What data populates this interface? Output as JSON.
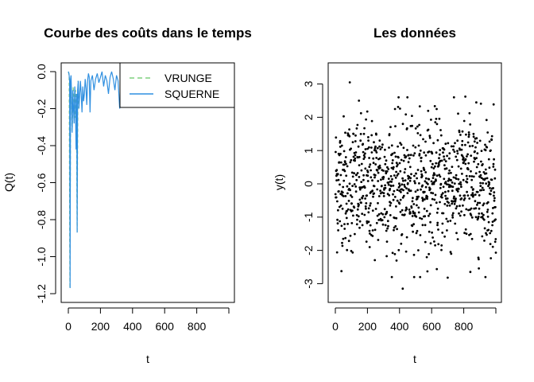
{
  "chart_data": [
    {
      "type": "line",
      "title": "Courbe des coûts dans le temps",
      "xlabel": "t",
      "ylabel": "Q(t)",
      "xlim": [
        0,
        1000
      ],
      "ylim": [
        -1.2,
        0.0
      ],
      "xticks": [
        0,
        200,
        400,
        600,
        800
      ],
      "xtick_labels": [
        "0",
        "200",
        "400",
        "600",
        "800"
      ],
      "yticks": [
        -1.2,
        -1.0,
        -0.8,
        -0.6,
        -0.4,
        -0.2,
        0.0
      ],
      "ytick_labels": [
        "-1.2",
        "-1.0",
        "-0.8",
        "-0.6",
        "-0.4",
        "-0.2",
        "0.0"
      ],
      "grid": false,
      "legend": {
        "placement": "top-right",
        "entries": [
          {
            "name": "VRUNGE",
            "color": "#7fd07f",
            "dash": true
          },
          {
            "name": "SQUERNE",
            "color": "#2f8fe0",
            "dash": false
          }
        ]
      },
      "series": [
        {
          "name": "VRUNGE",
          "color": "#7fd07f",
          "x": [
            0,
            5,
            10,
            15,
            20,
            25,
            30,
            35,
            40,
            45,
            50,
            55,
            60
          ],
          "y": [
            0.0,
            -0.02,
            -1.17,
            -0.05,
            -0.12,
            -0.3,
            -0.08,
            -0.15,
            -0.25,
            -0.1,
            -0.2,
            -0.87,
            -0.05
          ]
        },
        {
          "name": "SQUERNE",
          "color": "#2f8fe0",
          "x": [
            0,
            4,
            8,
            11,
            14,
            17,
            20,
            24,
            28,
            32,
            36,
            40,
            44,
            48,
            52,
            55,
            58,
            62,
            66,
            70,
            75,
            80,
            85,
            90,
            95,
            100,
            105,
            110,
            115,
            120,
            125,
            130,
            135,
            140,
            150,
            160,
            170,
            180,
            190,
            200,
            210,
            220,
            230,
            240,
            250,
            260,
            270,
            280,
            290,
            300,
            310,
            320,
            330
          ],
          "y": [
            0.0,
            -0.01,
            -0.05,
            -1.17,
            -0.04,
            -0.02,
            -0.12,
            -0.33,
            -0.1,
            -0.2,
            -0.28,
            -0.08,
            -0.15,
            -0.42,
            -0.12,
            -0.87,
            -0.1,
            -0.05,
            -0.2,
            -0.14,
            -0.05,
            -0.12,
            -0.22,
            -0.08,
            -0.16,
            -0.12,
            -0.04,
            -0.09,
            -0.18,
            -0.05,
            -0.01,
            -0.03,
            -0.22,
            -0.05,
            -0.02,
            -0.1,
            -0.04,
            -0.01,
            -0.06,
            -0.03,
            0.0,
            -0.08,
            -0.02,
            -0.05,
            -0.12,
            -0.03,
            0.0,
            -0.04,
            -0.1,
            -0.02,
            -0.05,
            -0.2,
            -0.08
          ]
        }
      ]
    },
    {
      "type": "scatter",
      "title": "Les données",
      "xlabel": "t",
      "ylabel": "y(t)",
      "xlim": [
        0,
        1000
      ],
      "ylim": [
        -3.3,
        3.3
      ],
      "xticks": [
        0,
        200,
        400,
        600,
        800
      ],
      "xtick_labels": [
        "0",
        "200",
        "400",
        "600",
        "800"
      ],
      "yticks": [
        -3,
        -2,
        -1,
        0,
        1,
        2,
        3
      ],
      "ytick_labels": [
        "-3",
        "-2",
        "-1",
        "0",
        "1",
        "2",
        "3"
      ],
      "grid": false,
      "point_color": "#000000",
      "n_points": 1000,
      "x_start": 1,
      "x_end": 1000,
      "series": [
        {
          "values_summary": "approximately standard normal values, one per t",
          "notable_points": [
            {
              "x": 90,
              "y": 3.05
            },
            {
              "x": 420,
              "y": -3.15
            },
            {
              "x": 700,
              "y": -2.82
            },
            {
              "x": 810,
              "y": 2.62
            }
          ]
        }
      ]
    }
  ]
}
